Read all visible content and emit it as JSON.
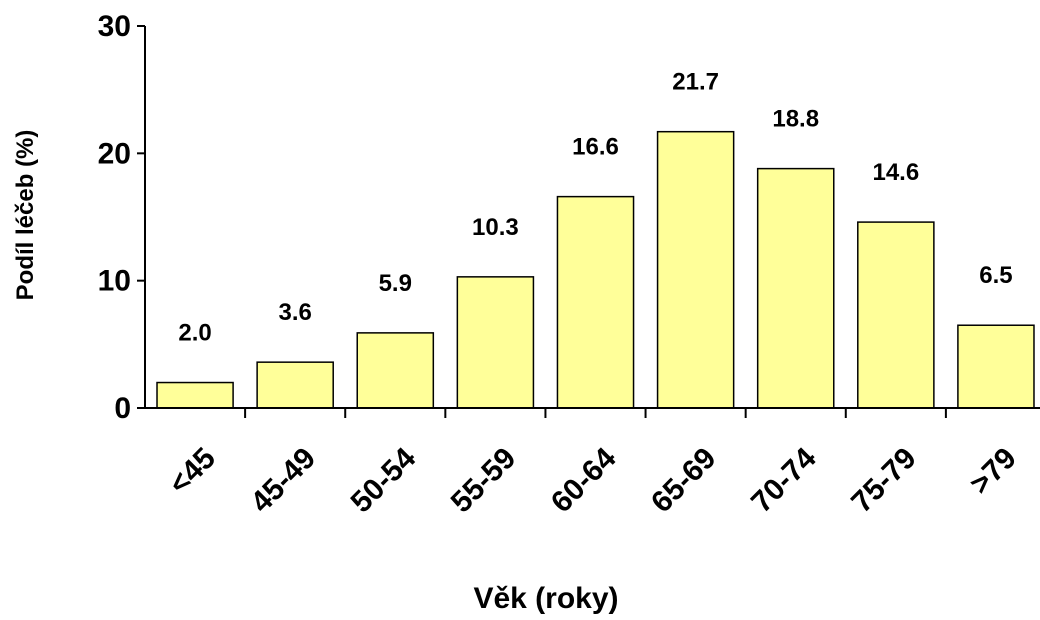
{
  "chart_data": {
    "type": "bar",
    "categories": [
      "<45",
      "45-49",
      "50-54",
      "55-59",
      "60-64",
      "65-69",
      "70-74",
      "75-79",
      ">79"
    ],
    "values": [
      2.0,
      3.6,
      5.9,
      10.3,
      16.6,
      21.7,
      18.8,
      14.6,
      6.5
    ],
    "value_labels": [
      "2.0",
      "3.6",
      "5.9",
      "10.3",
      "16.6",
      "21.7",
      "18.8",
      "14.6",
      "6.5"
    ],
    "xlabel": "Věk (roky)",
    "ylabel": "Podíl léčeb (%)",
    "ylim": [
      0,
      30
    ],
    "yticks": [
      0,
      10,
      20,
      30
    ],
    "grid": false,
    "legend": "none",
    "bar_color": "#ffff99",
    "bar_edge_color": "#000000"
  }
}
